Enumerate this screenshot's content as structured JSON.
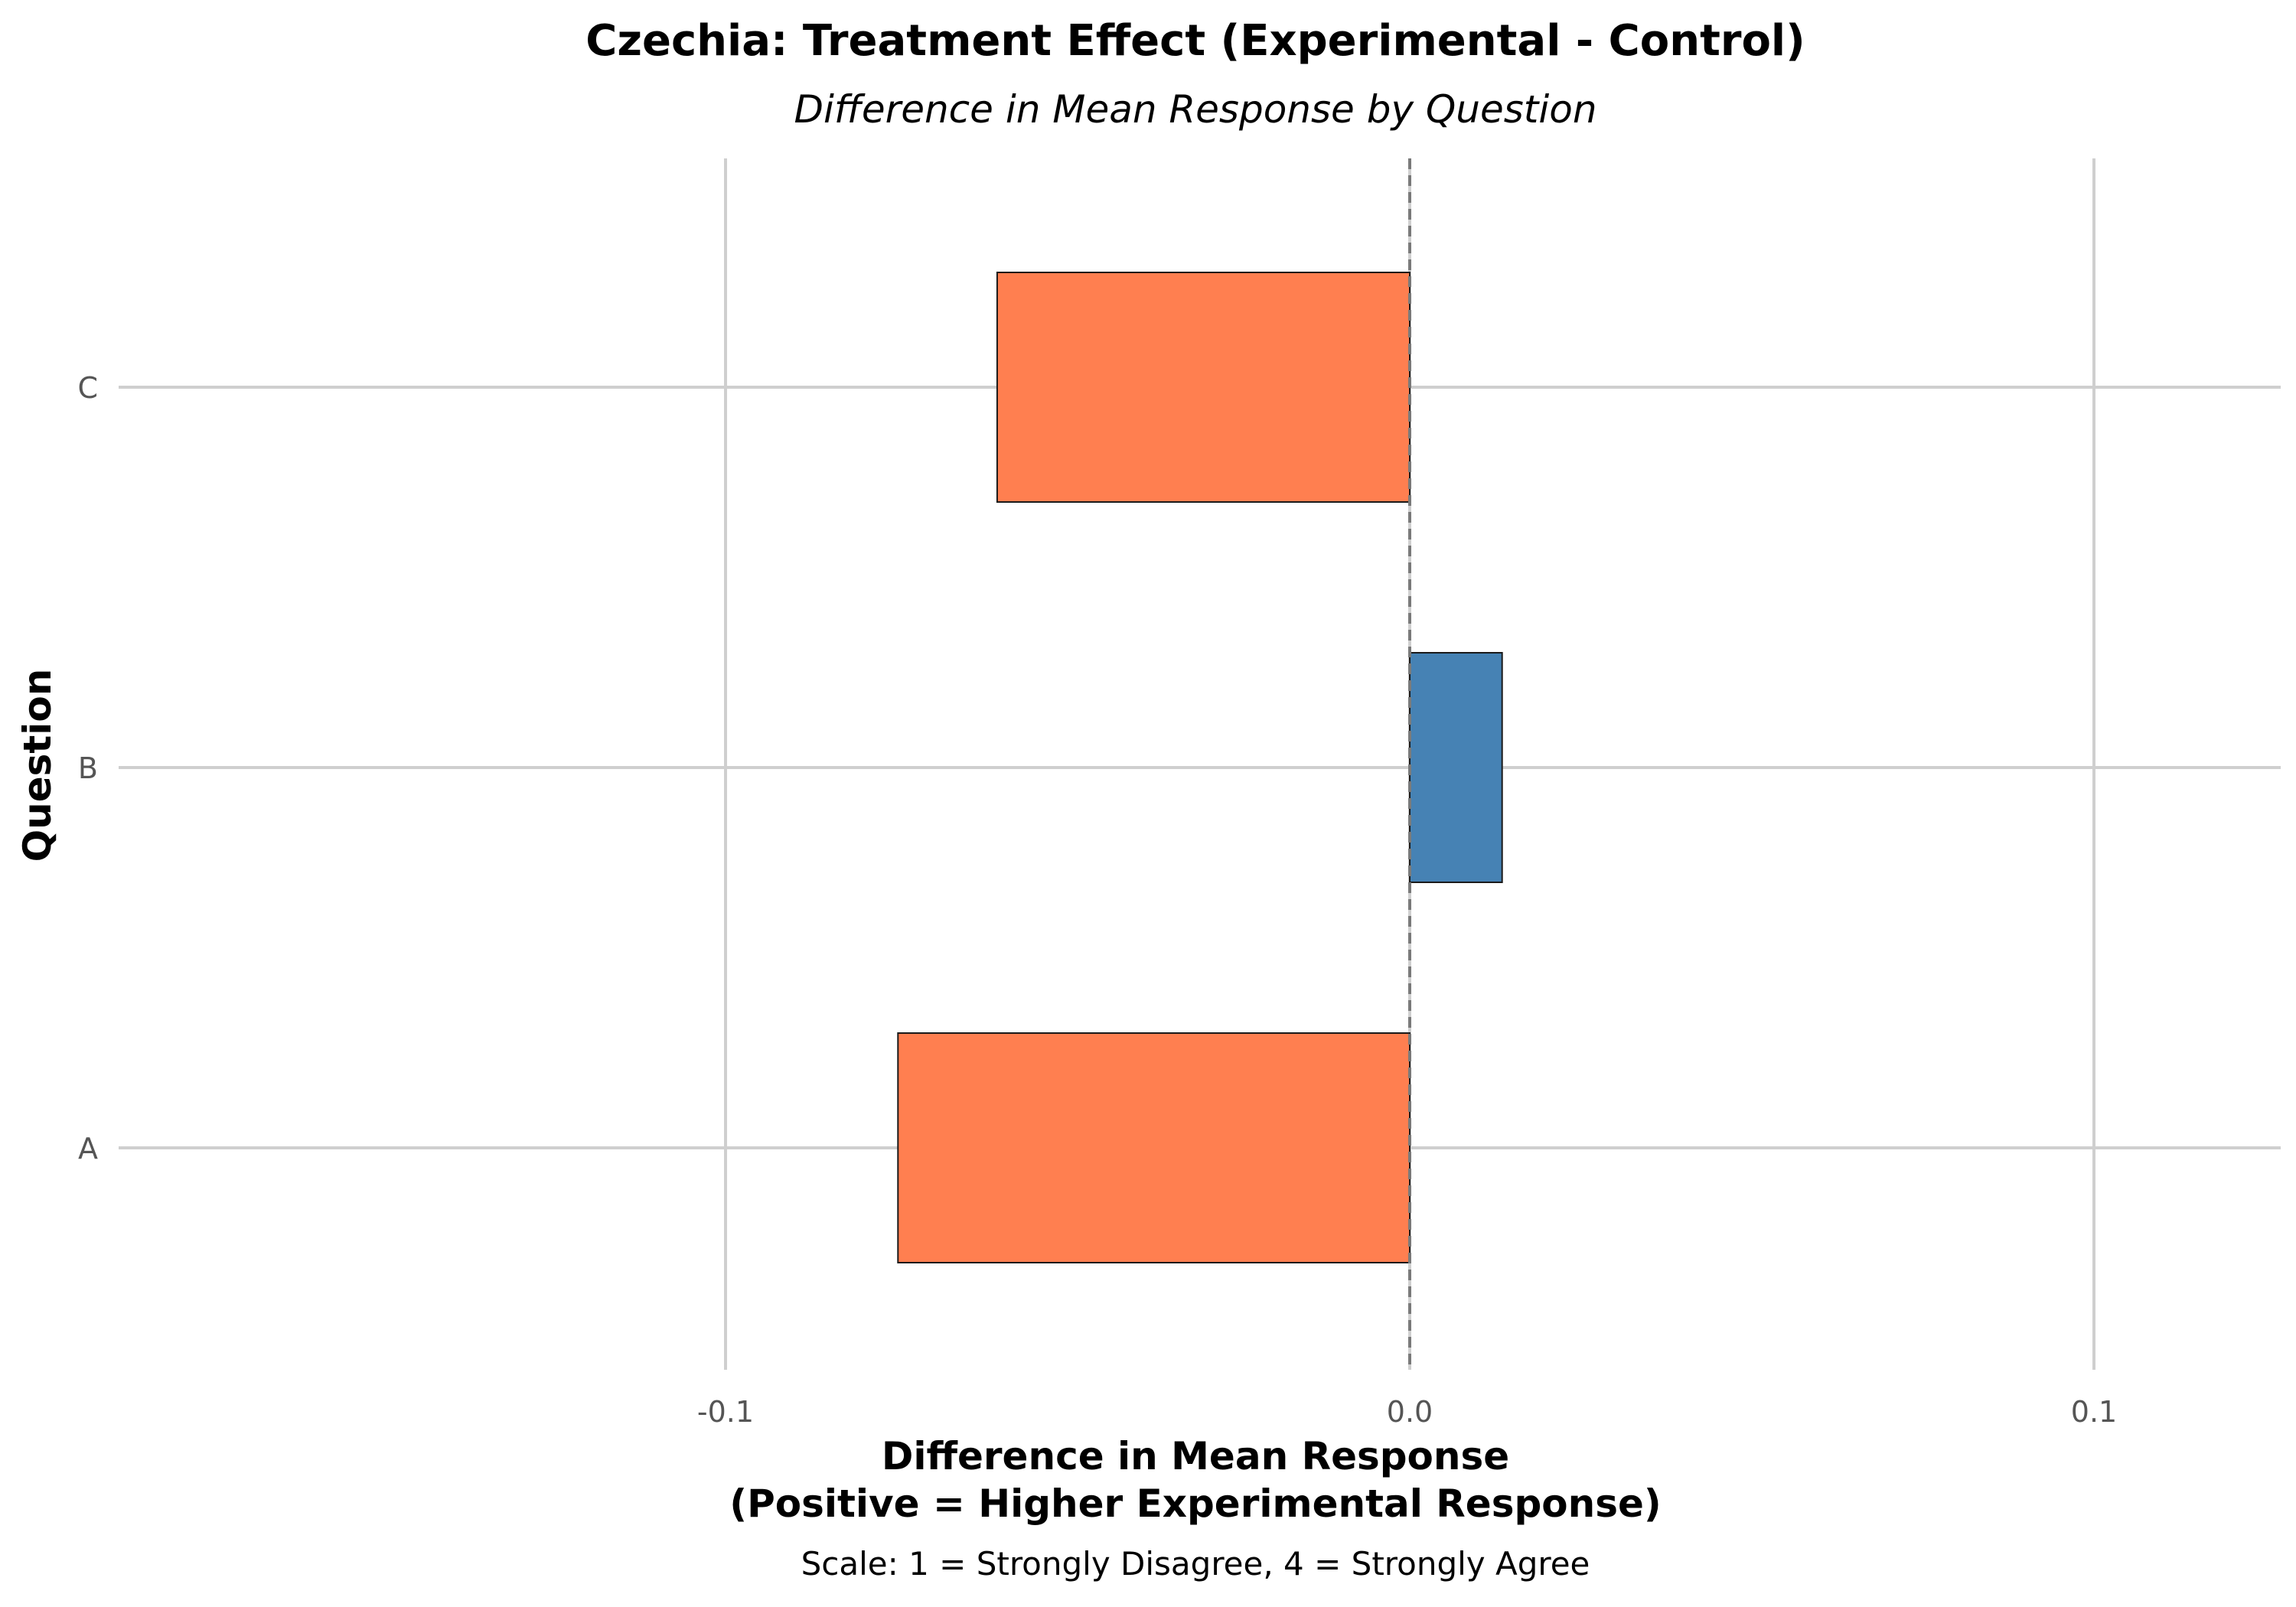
{
  "chart_data": {
    "type": "bar",
    "orientation": "horizontal",
    "title": "Czechia: Treatment Effect (Experimental - Control)",
    "subtitle": "Difference in Mean Response by Question",
    "xlabel_line1": "Difference in Mean Response",
    "xlabel_line2": "(Positive = Higher Experimental Response)",
    "ylabel": "Question",
    "caption": "Scale: 1 = Strongly Disagree, 4 = Strongly Agree",
    "categories": [
      "A",
      "B",
      "C"
    ],
    "values": [
      -0.0748,
      0.0135,
      -0.0603
    ],
    "xlim": [
      -0.2,
      0.1275
    ],
    "xticks": [
      -0.1,
      0.0,
      0.1
    ],
    "xtick_labels": [
      "-0.1",
      "0.0",
      "0.1"
    ],
    "grid": true,
    "zero_line": "dashed",
    "colors": {
      "negative": "#FF7F50",
      "positive": "#4682B4",
      "grid": "#cfcfcf",
      "zero_line": "#7a7a7a"
    }
  }
}
